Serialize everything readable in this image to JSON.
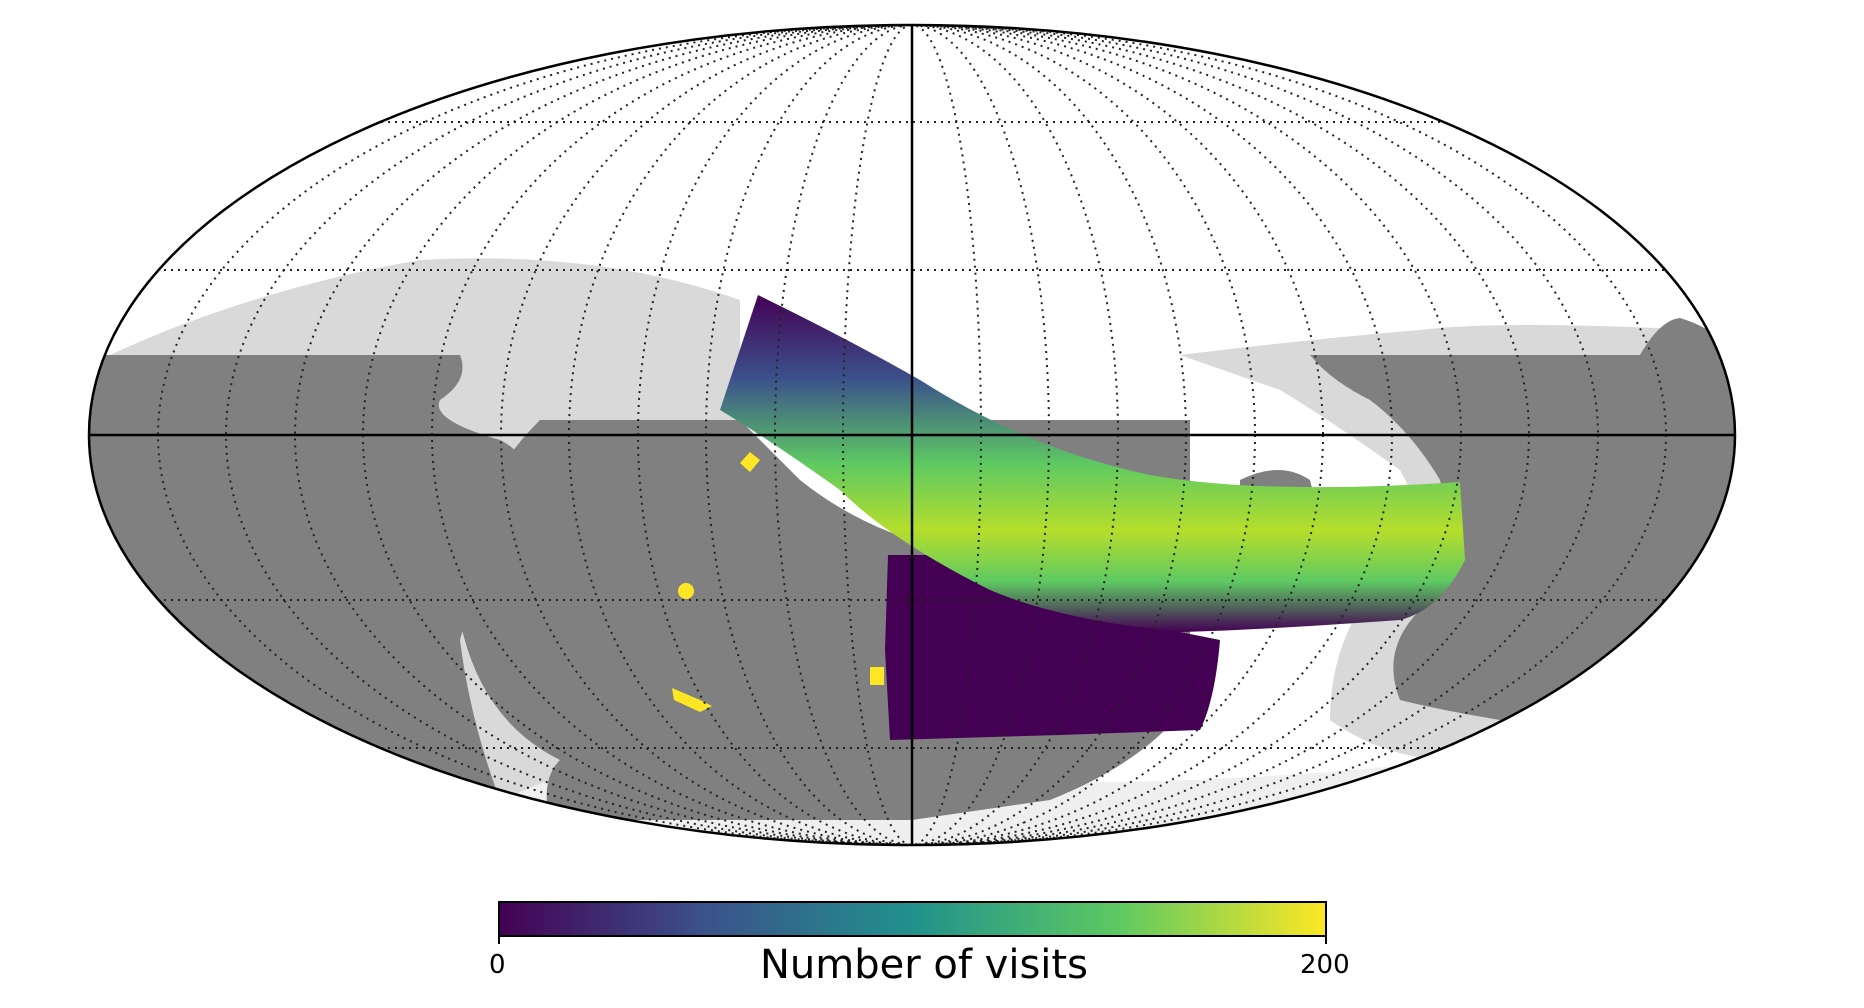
{
  "map": {
    "projection": "mollweide",
    "graticule": "dotted",
    "colors": {
      "background_inside": "#ffffff",
      "light_region": "#d9d9d9",
      "dark_region": "#808080",
      "pole_region": "#eeeeee",
      "colormap": [
        "#440154",
        "#3b528b",
        "#21918c",
        "#5ec962",
        "#fde725"
      ]
    }
  },
  "colorbar": {
    "label": "Number of visits",
    "min_label": "0",
    "max_label": "200",
    "min_value": 0,
    "max_value": 200,
    "colormap": "viridis"
  }
}
